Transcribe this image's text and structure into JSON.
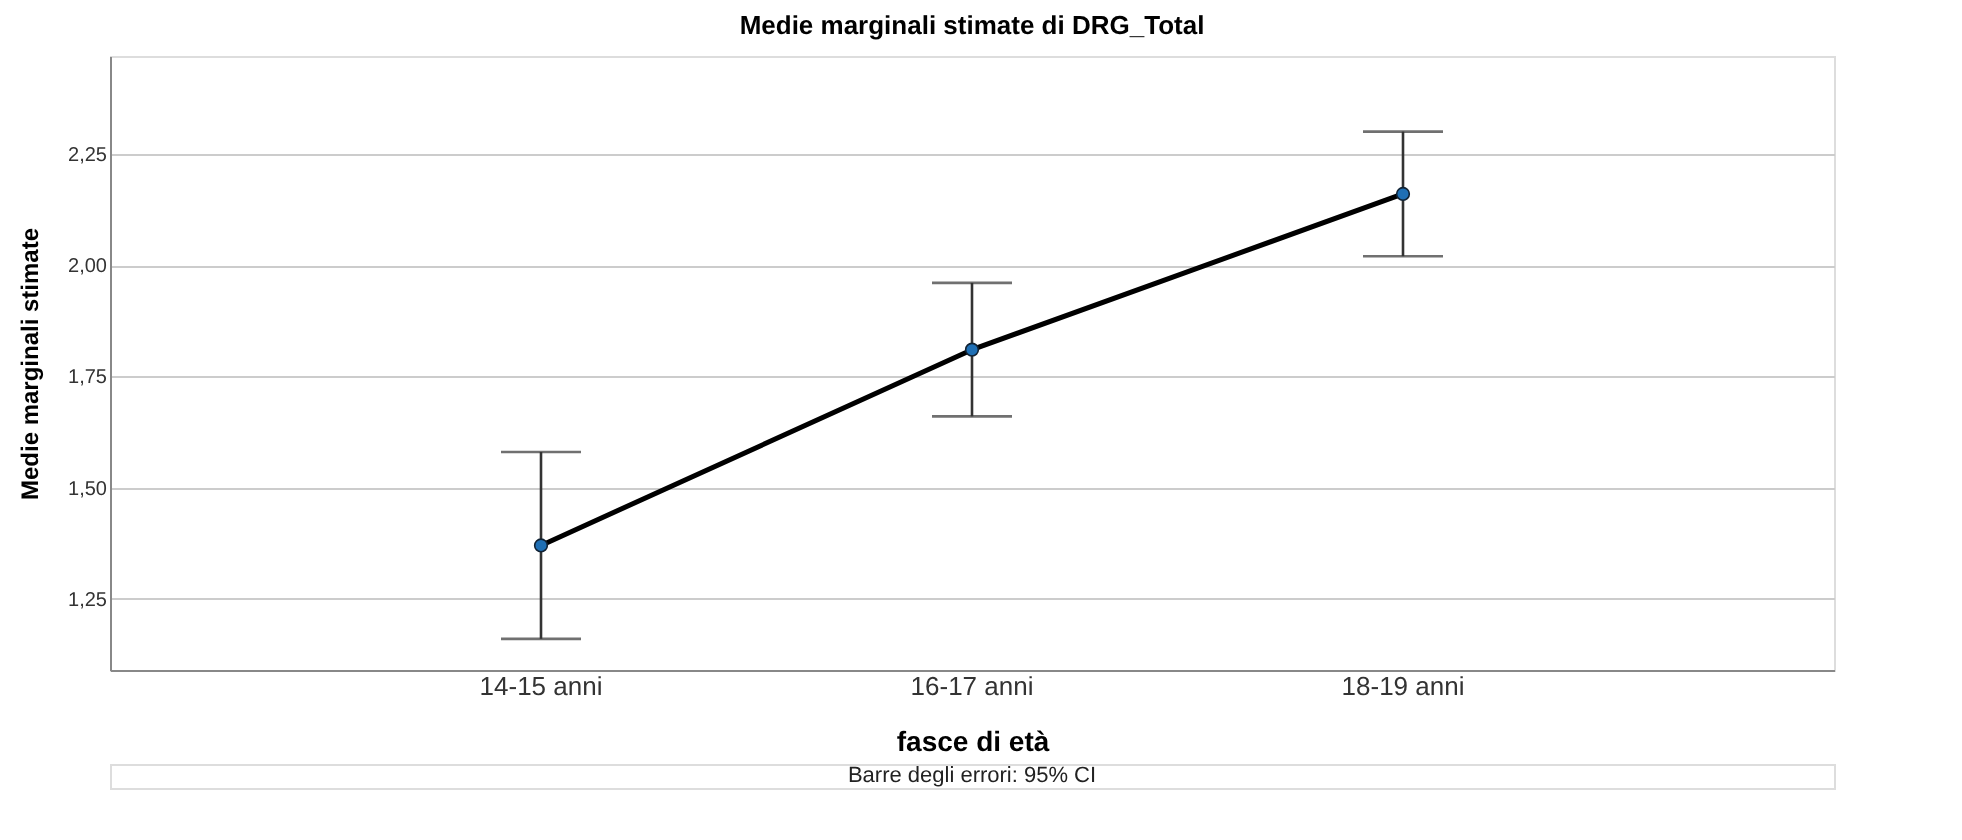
{
  "chart_data": {
    "type": "line",
    "title": "Medie marginali stimate di DRG_Total",
    "xlabel": "fasce di età",
    "ylabel": "Medie marginali stimate",
    "categories": [
      "14-15 anni",
      "16-17 anni",
      "18-19 anni"
    ],
    "series": [
      {
        "color": "#1f6fb4",
        "values": [
          1.37,
          1.81,
          2.16
        ],
        "errors": [
          [
            1.16,
            1.58
          ],
          [
            1.66,
            1.96
          ],
          [
            2.02,
            2.3
          ]
        ]
      }
    ],
    "ylim": [
      1.09,
      2.47
    ],
    "yticks": [
      {
        "value": 1.25,
        "label": "1,25"
      },
      {
        "value": 1.5,
        "label": "1,50"
      },
      {
        "value": 1.75,
        "label": "1,75"
      },
      {
        "value": 2.0,
        "label": "2,00"
      },
      {
        "value": 2.25,
        "label": "2,25"
      }
    ],
    "grid": "y",
    "marker": "circle",
    "line_style": "solid",
    "annotations": [
      "Barre degli errori: 95% CI"
    ]
  }
}
